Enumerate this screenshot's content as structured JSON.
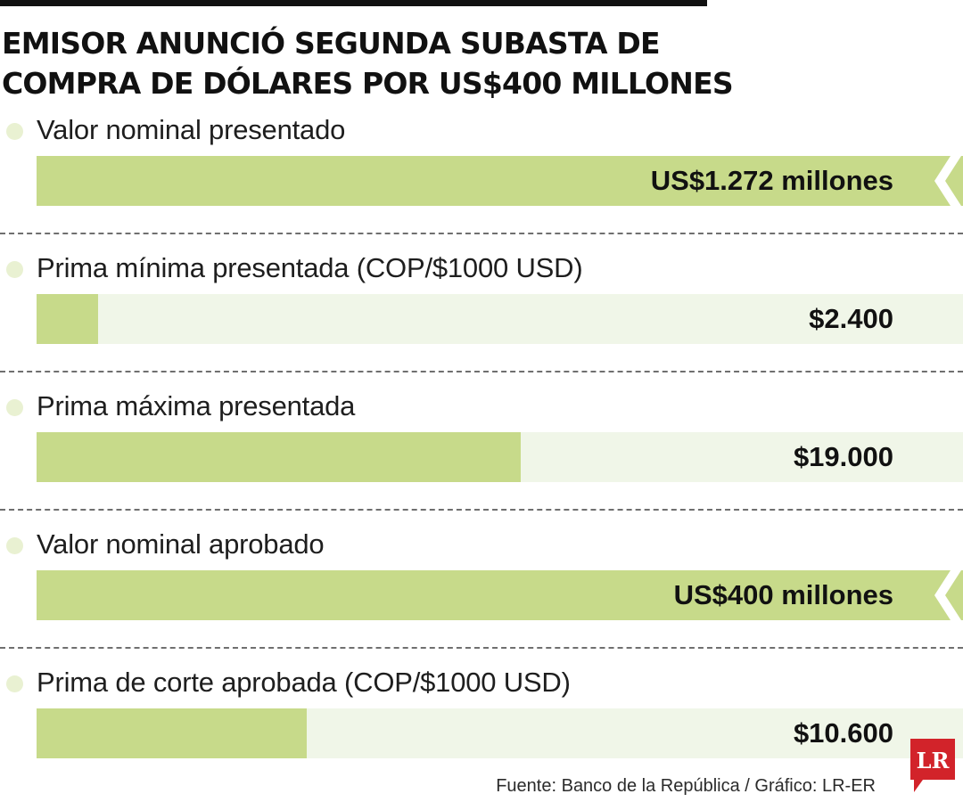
{
  "title": "EMISOR ANUNCIÓ SEGUNDA SUBASTA DE COMPRA DE DÓLARES POR US$400 MILLONES",
  "source": "Fuente: Banco de la República / Gráfico: LR-ER",
  "logo_text": "LR",
  "colors": {
    "bar": "#c7da8a",
    "track": "#f0f6e8",
    "dot": "#e9f1d2",
    "logo": "#d2232a"
  },
  "chart_data": {
    "type": "bar",
    "orientation": "horizontal",
    "title": "EMISOR ANUNCIÓ SEGUNDA SUBASTA DE COMPRA DE DÓLARES POR US$400 MILLONES",
    "rows": [
      {
        "label": "Valor nominal presentado",
        "value": 1272,
        "display": "US$1.272 millones",
        "fill": 1.0,
        "broken_axis": true
      },
      {
        "label": "Prima mínima presentada (COP/$1000 USD)",
        "value": 2400,
        "display": "$2.400",
        "fill": 0.066,
        "broken_axis": false
      },
      {
        "label": "Prima máxima presentada",
        "value": 19000,
        "display": "$19.000",
        "fill": 0.523,
        "broken_axis": false
      },
      {
        "label": "Valor nominal aprobado",
        "value": 400,
        "display": "US$400 millones",
        "fill": 1.0,
        "broken_axis": true
      },
      {
        "label": "Prima de corte aprobada (COP/$1000 USD)",
        "value": 10600,
        "display": "$10.600",
        "fill": 0.292,
        "broken_axis": false
      }
    ]
  }
}
